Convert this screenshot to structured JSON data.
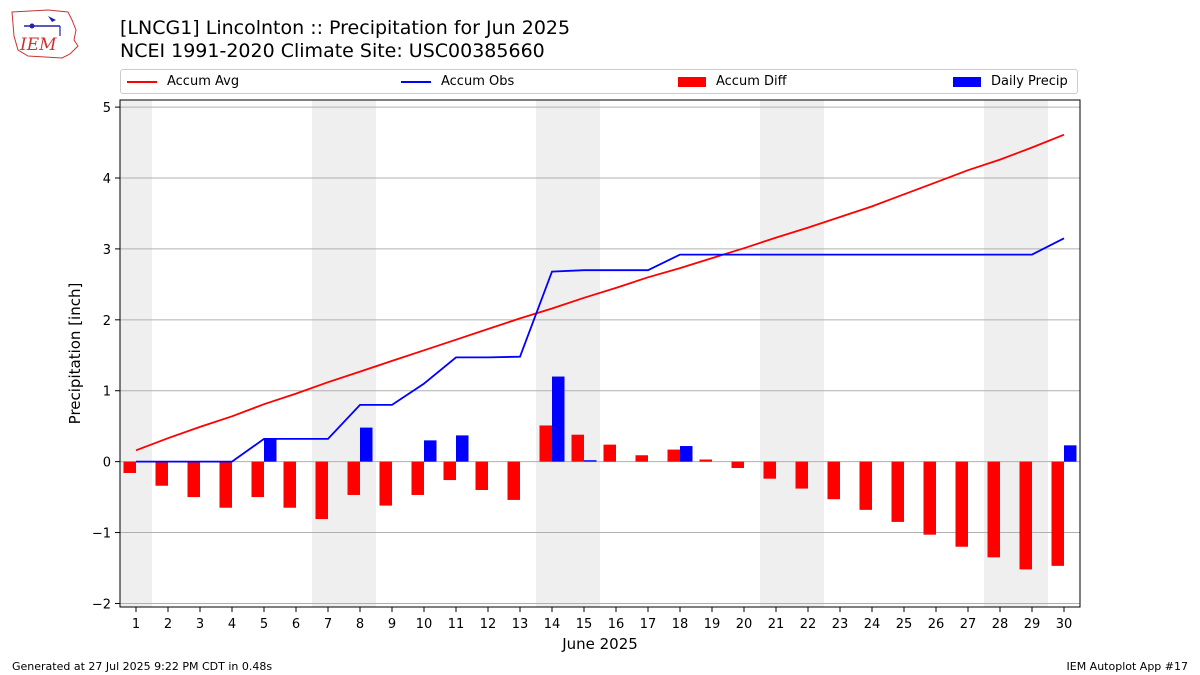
{
  "header": {
    "title_line1": "[LNCG1] Lincolnton :: Precipitation for Jun 2025",
    "title_line2": "NCEI 1991-2020 Climate Site: USC00385660",
    "logo_text": "IEM"
  },
  "footer": {
    "left": "Generated at 27 Jul 2025 9:22 PM CDT in 0.48s",
    "right": "IEM Autoplot App #17"
  },
  "chart_data": {
    "type": "bar",
    "xlabel": "June 2025",
    "ylabel": "Precipitation [inch]",
    "ylim": [
      -2.05,
      5.1
    ],
    "yticks": [
      -2,
      -1,
      0,
      1,
      2,
      3,
      4,
      5
    ],
    "grid": true,
    "legend_position": "top",
    "x": [
      1,
      2,
      3,
      4,
      5,
      6,
      7,
      8,
      9,
      10,
      11,
      12,
      13,
      14,
      15,
      16,
      17,
      18,
      19,
      20,
      21,
      22,
      23,
      24,
      25,
      26,
      27,
      28,
      29,
      30
    ],
    "weekend_days": [
      1,
      7,
      8,
      14,
      15,
      21,
      22,
      28,
      29
    ],
    "series": [
      {
        "name": "Accum Avg",
        "kind": "line",
        "color": "#ff0000",
        "values": [
          0.16,
          0.33,
          0.49,
          0.64,
          0.81,
          0.96,
          1.12,
          1.27,
          1.42,
          1.57,
          1.72,
          1.87,
          2.02,
          2.16,
          2.31,
          2.45,
          2.6,
          2.73,
          2.87,
          3.01,
          3.16,
          3.3,
          3.45,
          3.6,
          3.77,
          3.94,
          4.11,
          4.26,
          4.43,
          4.61
        ]
      },
      {
        "name": "Accum Obs",
        "kind": "line",
        "color": "#0000ff",
        "values": [
          0,
          0,
          0,
          0,
          0.32,
          0.32,
          0.32,
          0.8,
          0.8,
          1.1,
          1.47,
          1.47,
          1.48,
          2.68,
          2.7,
          2.7,
          2.7,
          2.92,
          2.92,
          2.92,
          2.92,
          2.92,
          2.92,
          2.92,
          2.92,
          2.92,
          2.92,
          2.92,
          2.92,
          3.15
        ]
      },
      {
        "name": "Accum Diff",
        "kind": "bar",
        "color": "#ff0000",
        "values": [
          -0.16,
          -0.34,
          -0.5,
          -0.65,
          -0.5,
          -0.65,
          -0.81,
          -0.47,
          -0.62,
          -0.47,
          -0.26,
          -0.4,
          -0.54,
          0.51,
          0.38,
          0.24,
          0.09,
          0.17,
          0.03,
          -0.09,
          -0.24,
          -0.38,
          -0.53,
          -0.68,
          -0.85,
          -1.03,
          -1.2,
          -1.35,
          -1.52,
          -1.47
        ]
      },
      {
        "name": "Daily Precip",
        "kind": "bar",
        "color": "#0000ff",
        "values": [
          0,
          0,
          0,
          0,
          0.32,
          0,
          0,
          0.48,
          0,
          0.3,
          0.37,
          0,
          0,
          1.2,
          0.02,
          0,
          0,
          0.22,
          0,
          0,
          0,
          0,
          0,
          0,
          0,
          0,
          0,
          0,
          0,
          0.23
        ]
      }
    ]
  }
}
